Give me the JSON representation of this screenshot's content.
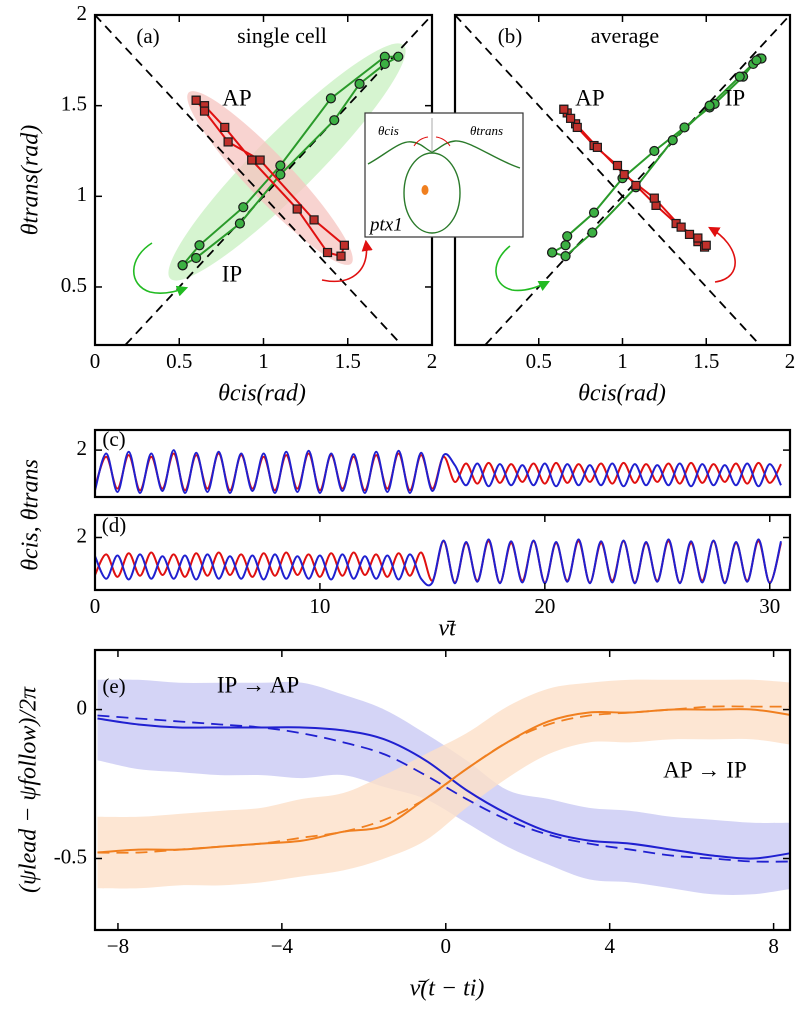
{
  "inset": {
    "theta_cis": "θcis",
    "theta_trans": "θtrans",
    "label": "ptx1"
  },
  "chart_data": [
    {
      "type": "line",
      "panel_label": "(a)",
      "subtitle": "single cell",
      "xlabel": "θcis(rad)",
      "ylabel": "θtrans(rad)",
      "xlim": [
        0,
        2
      ],
      "ylim": [
        0.18,
        2
      ],
      "xticks": [
        0,
        0.5,
        1,
        1.5,
        2
      ],
      "yticks": [
        0.5,
        1,
        1.5,
        2
      ],
      "series": [
        {
          "name": "IP",
          "color": "#2a9a2a",
          "marker": "circle",
          "x": [
            0.52,
            0.62,
            0.88,
            1.1,
            1.4,
            1.72,
            1.8,
            1.72,
            1.57,
            1.42,
            1.1,
            0.86,
            0.6,
            0.52
          ],
          "y": [
            0.62,
            0.73,
            0.94,
            1.17,
            1.54,
            1.77,
            1.77,
            1.73,
            1.62,
            1.42,
            1.12,
            0.85,
            0.66,
            0.62
          ]
        },
        {
          "name": "AP",
          "color": "#e01010",
          "marker": "square",
          "x": [
            0.6,
            0.65,
            0.77,
            0.93,
            1.2,
            1.38,
            1.46,
            1.48,
            1.3,
            0.98,
            0.79,
            0.65,
            0.6
          ],
          "y": [
            1.53,
            1.5,
            1.38,
            1.2,
            0.93,
            0.69,
            0.67,
            0.73,
            0.87,
            1.2,
            1.3,
            1.47,
            1.53
          ]
        }
      ]
    },
    {
      "type": "line",
      "panel_label": "(b)",
      "subtitle": "average",
      "xlabel": "θcis(rad)",
      "xlim": [
        0,
        2
      ],
      "ylim": [
        0.18,
        2
      ],
      "xticks": [
        0.5,
        1,
        1.5,
        2
      ],
      "series": [
        {
          "name": "IP",
          "color": "#2a9a2a",
          "marker": "circle",
          "x": [
            0.58,
            0.66,
            0.67,
            0.83,
            1.0,
            1.19,
            1.37,
            1.52,
            1.55,
            1.72,
            1.78,
            1.82,
            1.83,
            1.8,
            1.7,
            1.52,
            1.3,
            1.08,
            0.82,
            0.66,
            0.58
          ],
          "y": [
            0.69,
            0.73,
            0.78,
            0.91,
            1.1,
            1.25,
            1.38,
            1.49,
            1.51,
            1.66,
            1.73,
            1.76,
            1.76,
            1.75,
            1.66,
            1.5,
            1.31,
            1.05,
            0.8,
            0.67,
            0.69
          ]
        },
        {
          "name": "AP",
          "color": "#e01010",
          "marker": "square",
          "x": [
            0.65,
            0.67,
            0.72,
            0.73,
            0.83,
            0.97,
            1.08,
            1.2,
            1.32,
            1.4,
            1.45,
            1.49,
            1.5,
            1.45,
            1.35,
            1.19,
            1.01,
            0.85,
            0.69,
            0.65
          ],
          "y": [
            1.48,
            1.46,
            1.4,
            1.38,
            1.28,
            1.17,
            1.06,
            0.95,
            0.85,
            0.79,
            0.75,
            0.72,
            0.73,
            0.77,
            0.83,
            0.99,
            1.12,
            1.27,
            1.43,
            1.48
          ]
        }
      ]
    },
    {
      "type": "line",
      "panel_label": "(c)",
      "ylabel": "θcis, θtrans",
      "xlim": [
        0,
        30.9
      ],
      "ylim": [
        0.6,
        2.6
      ],
      "yticks": [
        2
      ],
      "x": [
        0,
        0.5,
        1,
        1.5,
        2,
        2.5,
        3,
        3.5,
        4,
        4.5,
        5,
        5.5,
        6,
        6.5,
        7,
        7.5,
        8,
        8.5,
        9,
        9.5,
        10,
        10.5,
        11,
        11.5,
        12,
        12.5,
        13,
        13.5,
        14,
        14.5,
        15,
        15.5,
        16,
        16.5,
        17,
        17.5,
        18,
        18.5,
        19,
        19.5,
        20,
        20.5,
        21,
        21.5,
        22,
        22.5,
        23,
        23.5,
        24,
        24.5,
        25,
        25.5,
        26,
        26.5,
        27,
        27.5,
        28,
        28.5,
        29,
        29.5,
        30,
        30.5
      ],
      "series": [
        {
          "color": "#e01010",
          "values": [
            0.9,
            1.8,
            0.85,
            1.85,
            0.8,
            1.8,
            0.85,
            1.9,
            0.8,
            1.85,
            0.85,
            1.9,
            0.8,
            1.85,
            0.85,
            1.8,
            0.8,
            1.85,
            0.85,
            1.9,
            0.8,
            1.85,
            0.85,
            1.8,
            0.8,
            1.85,
            0.85,
            1.9,
            0.8,
            1.85,
            0.85,
            1.8,
            1.05,
            1.6,
            1.0,
            1.62,
            1.02,
            1.58,
            1.05,
            1.6,
            1.0,
            1.62,
            1.02,
            1.58,
            1.05,
            1.6,
            1.0,
            1.62,
            1.02,
            1.58,
            1.05,
            1.6,
            1.0,
            1.62,
            1.02,
            1.58,
            1.05,
            1.6,
            1.0,
            1.62,
            1.02,
            1.58
          ]
        },
        {
          "color": "#2020d0",
          "values": [
            0.8,
            1.9,
            0.75,
            1.95,
            0.72,
            1.9,
            0.78,
            2.0,
            0.72,
            1.92,
            0.75,
            1.95,
            0.72,
            1.9,
            0.78,
            1.9,
            0.72,
            1.95,
            0.75,
            1.98,
            0.72,
            1.9,
            0.78,
            1.88,
            0.72,
            1.95,
            0.75,
            1.98,
            0.72,
            1.92,
            0.78,
            1.85,
            1.55,
            0.95,
            1.6,
            0.92,
            1.58,
            0.95,
            1.55,
            0.95,
            1.6,
            0.92,
            1.58,
            0.95,
            1.55,
            0.95,
            1.6,
            0.92,
            1.58,
            0.95,
            1.55,
            0.95,
            1.6,
            0.92,
            1.58,
            0.95,
            1.55,
            0.95,
            1.6,
            0.92,
            1.58,
            0.95
          ]
        }
      ]
    },
    {
      "type": "line",
      "panel_label": "(d)",
      "xlabel": "ν̄t",
      "xlim": [
        0,
        30.9
      ],
      "ylim": [
        0.6,
        2.6
      ],
      "yticks": [
        2
      ],
      "xticks": [
        0,
        10,
        20,
        30
      ],
      "x": [
        0,
        0.5,
        1,
        1.5,
        2,
        2.5,
        3,
        3.5,
        4,
        4.5,
        5,
        5.5,
        6,
        6.5,
        7,
        7.5,
        8,
        8.5,
        9,
        9.5,
        10,
        10.5,
        11,
        11.5,
        12,
        12.5,
        13,
        13.5,
        14,
        14.5,
        15,
        15.5,
        16,
        16.5,
        17,
        17.5,
        18,
        18.5,
        19,
        19.5,
        20,
        20.5,
        21,
        21.5,
        22,
        22.5,
        23,
        23.5,
        24,
        24.5,
        25,
        25.5,
        26,
        26.5,
        27,
        27.5,
        28,
        28.5,
        29,
        29.5,
        30,
        30.5
      ],
      "series": [
        {
          "color": "#e01010",
          "values": [
            1.0,
            1.55,
            0.95,
            1.58,
            0.98,
            1.6,
            1.0,
            1.55,
            0.95,
            1.58,
            0.98,
            1.6,
            1.0,
            1.55,
            0.95,
            1.58,
            0.98,
            1.6,
            1.0,
            1.55,
            0.95,
            1.58,
            0.98,
            1.6,
            1.0,
            1.55,
            0.95,
            1.58,
            0.98,
            1.6,
            0.85,
            1.9,
            0.8,
            1.85,
            0.85,
            1.9,
            0.8,
            1.85,
            0.85,
            1.9,
            0.8,
            1.85,
            0.85,
            1.9,
            0.8,
            1.85,
            0.85,
            1.9,
            0.8,
            1.85,
            0.85,
            1.9,
            0.8,
            1.85,
            0.85,
            1.9,
            0.8,
            1.85,
            0.85,
            1.9,
            0.8,
            1.85
          ]
        },
        {
          "color": "#2020d0",
          "values": [
            1.5,
            0.9,
            1.52,
            0.88,
            1.55,
            0.9,
            1.5,
            0.9,
            1.52,
            0.88,
            1.55,
            0.9,
            1.5,
            0.9,
            1.52,
            0.88,
            1.55,
            0.9,
            1.5,
            0.9,
            1.52,
            0.88,
            1.55,
            0.9,
            1.5,
            0.9,
            1.52,
            0.88,
            1.55,
            0.9,
            0.8,
            1.92,
            0.78,
            1.88,
            0.82,
            1.95,
            0.78,
            1.9,
            0.8,
            1.92,
            0.78,
            1.88,
            0.82,
            1.95,
            0.78,
            1.9,
            0.8,
            1.92,
            0.78,
            1.88,
            0.82,
            1.95,
            0.78,
            1.9,
            0.8,
            1.92,
            0.78,
            1.88,
            0.82,
            1.95,
            0.78,
            1.9
          ]
        }
      ]
    },
    {
      "type": "line",
      "panel_label": "(e)",
      "xlabel": "ν̄(t − ti)",
      "ylabel": "(ψlead − ψfollow)/2π",
      "xlim": [
        -8.56,
        8.4
      ],
      "ylim": [
        -0.74,
        0.2
      ],
      "xticks": [
        {
          "value": -8,
          "label": "−8"
        },
        {
          "value": -4,
          "label": "−4"
        },
        0,
        4,
        8
      ],
      "yticks": [
        -0.5,
        0
      ],
      "x": [
        -8.5,
        -7.5,
        -6.5,
        -5.5,
        -4.5,
        -3.5,
        -2.5,
        -1.5,
        -0.5,
        0.5,
        1.5,
        2.5,
        3.5,
        4.5,
        5.5,
        6.5,
        7.5,
        8.5
      ],
      "series": [
        {
          "name": "IP → AP",
          "color": "#2020d0",
          "band_color": "#c9c9f4",
          "values": [
            -0.03,
            -0.05,
            -0.06,
            -0.06,
            -0.06,
            -0.06,
            -0.07,
            -0.1,
            -0.17,
            -0.27,
            -0.35,
            -0.41,
            -0.44,
            -0.45,
            -0.47,
            -0.49,
            -0.5,
            -0.48
          ],
          "fit": [
            -0.02,
            -0.03,
            -0.04,
            -0.05,
            -0.06,
            -0.08,
            -0.11,
            -0.15,
            -0.22,
            -0.3,
            -0.37,
            -0.42,
            -0.45,
            -0.47,
            -0.49,
            -0.5,
            -0.51,
            -0.51
          ],
          "upper": [
            0.1,
            0.1,
            0.09,
            0.09,
            0.09,
            0.09,
            0.05,
            0.0,
            -0.08,
            -0.17,
            -0.27,
            -0.3,
            -0.33,
            -0.34,
            -0.36,
            -0.37,
            -0.38,
            -0.38
          ],
          "lower": [
            -0.17,
            -0.2,
            -0.21,
            -0.22,
            -0.22,
            -0.23,
            -0.22,
            -0.26,
            -0.3,
            -0.38,
            -0.46,
            -0.52,
            -0.57,
            -0.58,
            -0.6,
            -0.62,
            -0.62,
            -0.6
          ]
        },
        {
          "name": "AP → IP",
          "color": "#f07f1f",
          "band_color": "#fde0c8",
          "values": [
            -0.48,
            -0.47,
            -0.47,
            -0.46,
            -0.45,
            -0.44,
            -0.41,
            -0.39,
            -0.3,
            -0.2,
            -0.11,
            -0.04,
            -0.01,
            -0.01,
            0,
            0,
            0,
            -0.02
          ],
          "fit": [
            -0.48,
            -0.48,
            -0.47,
            -0.46,
            -0.45,
            -0.43,
            -0.41,
            -0.37,
            -0.3,
            -0.2,
            -0.11,
            -0.05,
            -0.02,
            -0.01,
            0,
            0.01,
            0.01,
            0.01
          ],
          "upper": [
            -0.36,
            -0.36,
            -0.35,
            -0.34,
            -0.33,
            -0.3,
            -0.28,
            -0.22,
            -0.15,
            -0.08,
            0.01,
            0.07,
            0.09,
            0.1,
            0.1,
            0.1,
            0.1,
            0.09
          ],
          "lower": [
            -0.6,
            -0.6,
            -0.59,
            -0.59,
            -0.58,
            -0.56,
            -0.54,
            -0.5,
            -0.44,
            -0.33,
            -0.23,
            -0.15,
            -0.11,
            -0.11,
            -0.1,
            -0.1,
            -0.1,
            -0.12
          ]
        }
      ]
    }
  ]
}
